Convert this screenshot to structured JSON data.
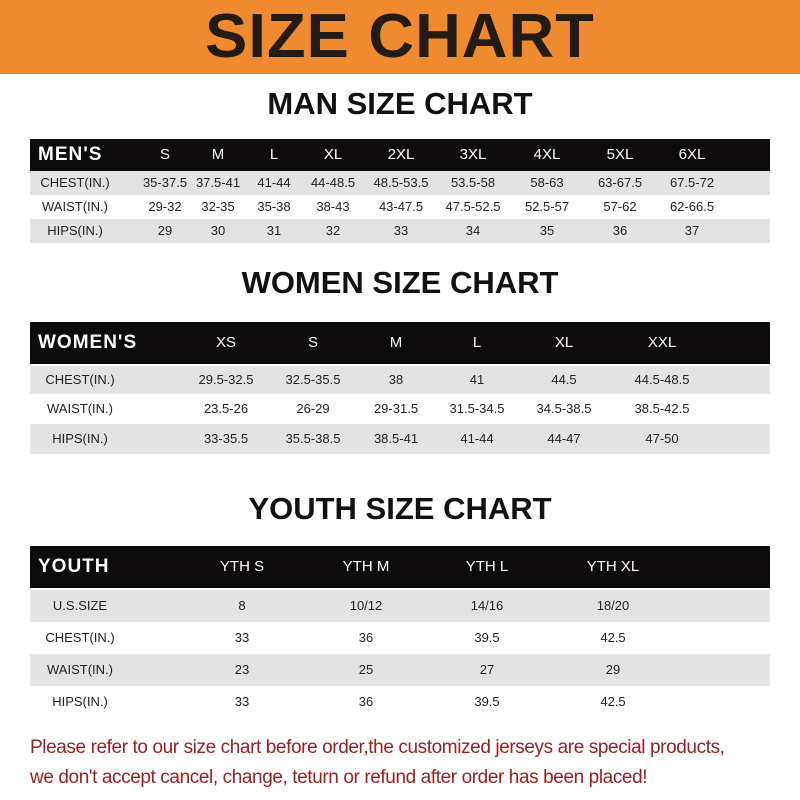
{
  "banner": {
    "title": "SIZE CHART"
  },
  "men": {
    "title": "MAN SIZE CHART",
    "header": [
      "MEN'S",
      "S",
      "M",
      "L",
      "XL",
      "2XL",
      "3XL",
      "4XL",
      "5XL",
      "6XL"
    ],
    "rows": [
      [
        "CHEST(IN.)",
        "35-37.5",
        "37.5-41",
        "41-44",
        "44-48.5",
        "48.5-53.5",
        "53.5-58",
        "58-63",
        "63-67.5",
        "67.5-72"
      ],
      [
        "WAIST(IN.)",
        "29-32",
        "32-35",
        "35-38",
        "38-43",
        "43-47.5",
        "47.5-52.5",
        "52.5-57",
        "57-62",
        "62-66.5"
      ],
      [
        "HIPS(IN.)",
        "29",
        "30",
        "31",
        "32",
        "33",
        "34",
        "35",
        "36",
        "37"
      ]
    ]
  },
  "women": {
    "title": "WOMEN SIZE CHART",
    "header": [
      "WOMEN'S",
      "XS",
      "S",
      "M",
      "L",
      "XL",
      "XXL"
    ],
    "rows": [
      [
        "CHEST(IN.)",
        "29.5-32.5",
        "32.5-35.5",
        "38",
        "41",
        "44.5",
        "44.5-48.5"
      ],
      [
        "WAIST(IN.)",
        "23.5-26",
        "26-29",
        "29-31.5",
        "31.5-34.5",
        "34.5-38.5",
        "38.5-42.5"
      ],
      [
        "HIPS(IN.)",
        "33-35.5",
        "35.5-38.5",
        "38.5-41",
        "41-44",
        "44-47",
        "47-50"
      ]
    ]
  },
  "youth": {
    "title": "YOUTH SIZE CHART",
    "header": [
      "YOUTH",
      "YTH S",
      "YTH M",
      "YTH L",
      "YTH XL"
    ],
    "rows": [
      [
        "U.S.SIZE",
        "8",
        "10/12",
        "14/16",
        "18/20"
      ],
      [
        "CHEST(IN.)",
        "33",
        "36",
        "39.5",
        "42.5"
      ],
      [
        "WAIST(IN.)",
        "23",
        "25",
        "27",
        "29"
      ],
      [
        "HIPS(IN.)",
        "33",
        "36",
        "39.5",
        "42.5"
      ]
    ]
  },
  "note": {
    "line1": "Please refer to our size chart before order,the customized jerseys are special products,",
    "line2": "we don't accept cancel, change, teturn or refund after order has been placed!"
  },
  "colors": {
    "banner": "#ef8a2e",
    "header_row": "#0d0b0b",
    "stripe": "#e3e3e3",
    "note": "#a01d1d"
  }
}
